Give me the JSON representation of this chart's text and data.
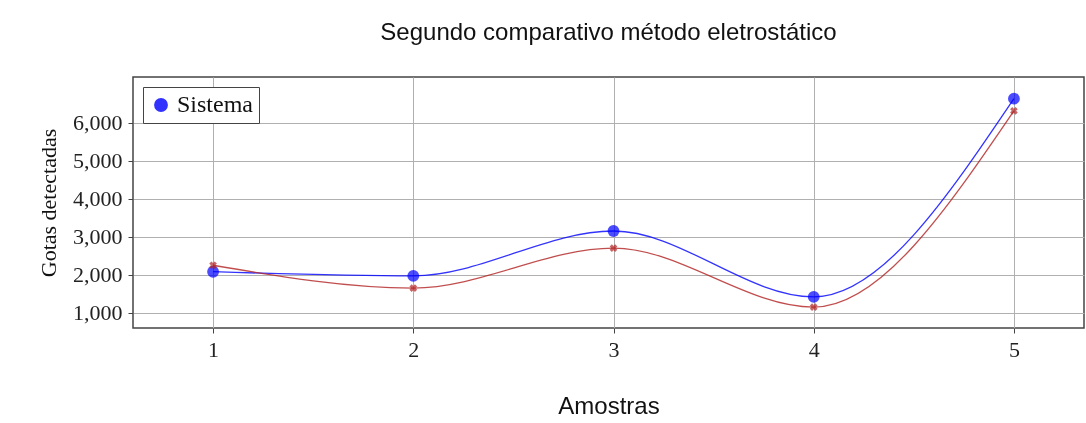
{
  "chart_data": {
    "type": "line",
    "title": "Segundo comparativo método eletrostático",
    "xlabel": "Amostras",
    "ylabel": "Gotas detectadas",
    "x": [
      1,
      2,
      3,
      4,
      5
    ],
    "series": [
      {
        "name": "Sistema",
        "color": "#0000ff",
        "marker": "circle",
        "values": [
          2080,
          1970,
          3150,
          1420,
          6630
        ]
      },
      {
        "color": "#b22222",
        "marker": "cross",
        "values": [
          2250,
          1650,
          2700,
          1150,
          6310
        ]
      }
    ],
    "xlim": [
      0.6,
      5.35
    ],
    "xticks": [
      1,
      2,
      3,
      4,
      5
    ],
    "ylim": [
      600,
      7200
    ],
    "yticks": [
      {
        "value": 1000,
        "label": "1,000"
      },
      {
        "value": 2000,
        "label": "2,000"
      },
      {
        "value": 3000,
        "label": "3,000"
      },
      {
        "value": 4000,
        "label": "4,000"
      },
      {
        "value": 5000,
        "label": "5,000"
      },
      {
        "value": 6000,
        "label": "6,000"
      }
    ],
    "grid": true,
    "legend": "top left",
    "line_style": "solid"
  }
}
